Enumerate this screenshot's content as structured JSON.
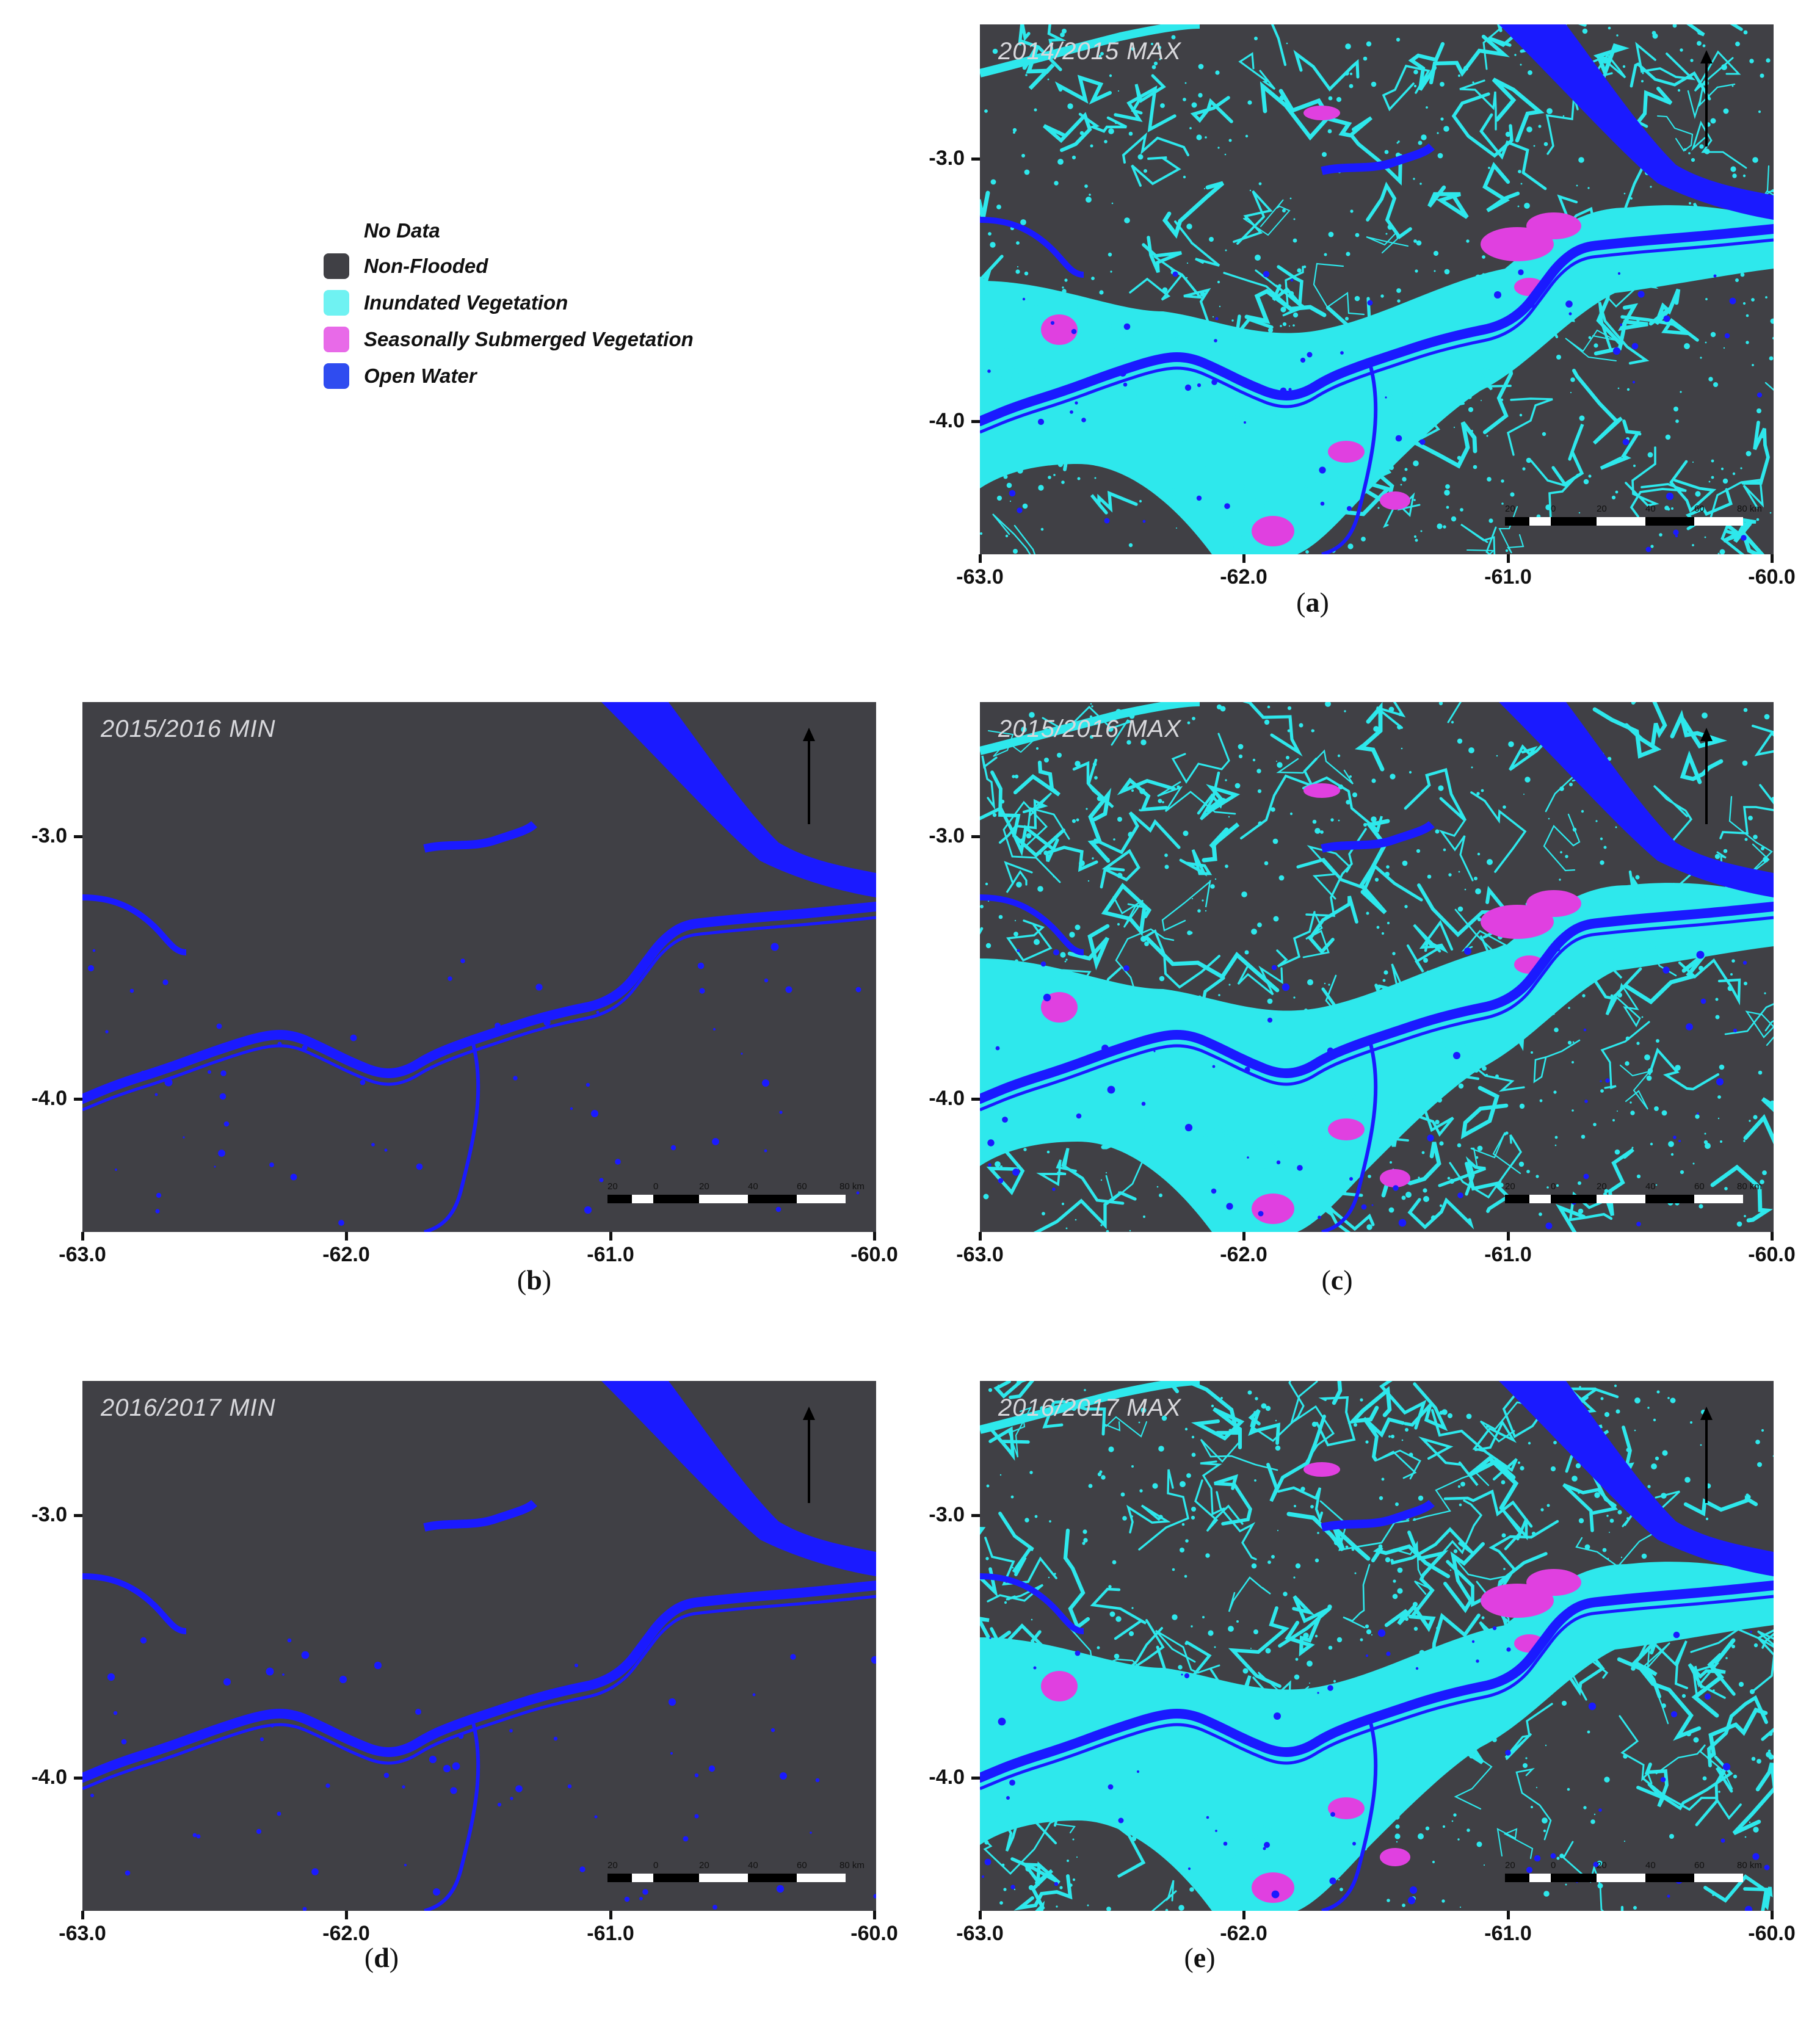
{
  "legend": {
    "items": [
      {
        "label": "No Data",
        "color": ""
      },
      {
        "label": "Non-Flooded",
        "color": "#404045"
      },
      {
        "label": "Inundated Vegetation",
        "color": "#6ff2f2"
      },
      {
        "label": "Seasonally Submerged Vegetation",
        "color": "#e86ae8"
      },
      {
        "label": "Open Water",
        "color": "#2f4cf0"
      }
    ]
  },
  "colors": {
    "non_flooded": "#404045",
    "inundated_vegetation": "#2ee8ec",
    "seasonally_submerged": "#e040e0",
    "open_water": "#1a1aff"
  },
  "axes": {
    "x_ticks": [
      "-63.0",
      "-62.0",
      "-61.0",
      "-60.0"
    ],
    "y_ticks": [
      "-3.0",
      "-4.0"
    ]
  },
  "scale_bar": {
    "labels": [
      "20",
      "0",
      "20",
      "40",
      "60",
      "80 km"
    ]
  },
  "panels": [
    {
      "id": "a",
      "title": "2014/2015 MAX",
      "caption": "a",
      "type": "max"
    },
    {
      "id": "b",
      "title": "2015/2016 MIN",
      "caption": "b",
      "type": "min"
    },
    {
      "id": "c",
      "title": "2015/2016 MAX",
      "caption": "c",
      "type": "max"
    },
    {
      "id": "d",
      "title": "2016/2017 MIN",
      "caption": "d",
      "type": "min"
    },
    {
      "id": "e",
      "title": "2016/2017 MAX",
      "caption": "e",
      "type": "max"
    }
  ]
}
